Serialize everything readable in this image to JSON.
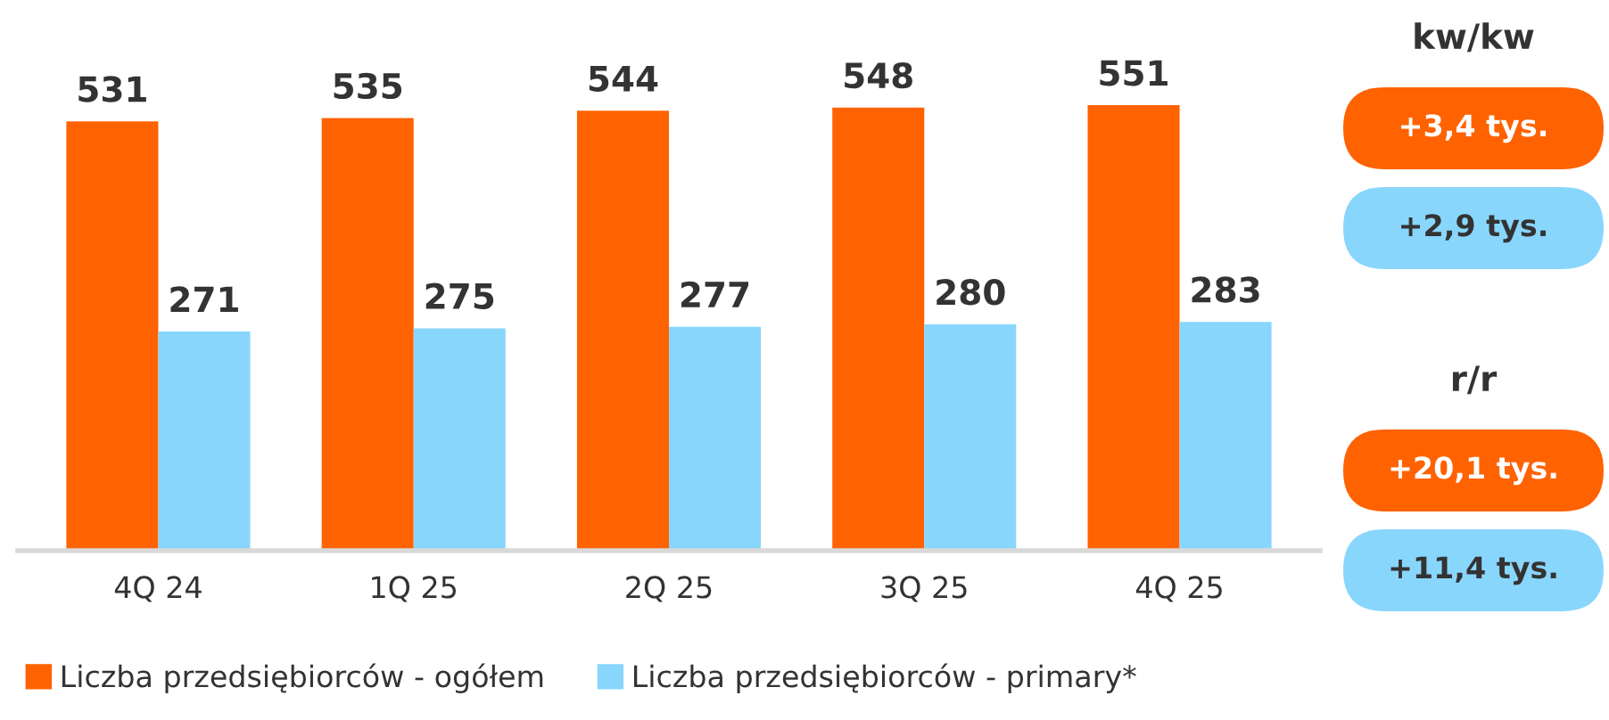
{
  "chart_data": [
    {
      "type": "bar",
      "categories": [
        "4Q 24",
        "1Q 25",
        "2Q 25",
        "3Q 25",
        "4Q 25"
      ],
      "series": [
        {
          "name": "Liczba przedsiębiorców - ogółem",
          "color": "#ff6200",
          "values": [
            531,
            535,
            544,
            548,
            551
          ]
        },
        {
          "name": "Liczba przedsiębiorców - primary*",
          "color": "#89d6fd",
          "values": [
            271,
            275,
            277,
            280,
            283
          ]
        }
      ],
      "data_labels": true,
      "legend": "bottom left",
      "tick_labels": "x"
    },
    {
      "type": "other",
      "annotations": [
        "kw/kw",
        "+3,4 tys.",
        "+2,9 tys.",
        "r/r",
        "+20,1 tys.",
        "+11,4 tys."
      ],
      "colors": [
        null,
        "#ff6200",
        "#89d6fd",
        null,
        "#ff6200",
        "#89d6fd"
      ]
    }
  ]
}
